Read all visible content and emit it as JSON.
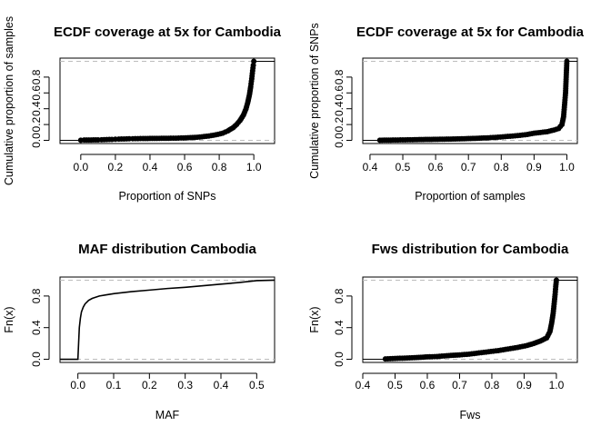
{
  "chart_data": [
    {
      "id": "p1",
      "type": "scatter",
      "title": "ECDF coverage at 5x for Cambodia",
      "xlabel": "Proportion of SNPs",
      "ylabel": "Cumulative proportion of samples",
      "xlim": [
        -0.12,
        1.12
      ],
      "ylim": [
        -0.04,
        1.04
      ],
      "xticks": [
        0.0,
        0.2,
        0.4,
        0.6,
        0.8,
        1.0
      ],
      "xtick_labels": [
        "0.0",
        "0.2",
        "0.4",
        "0.6",
        "0.8",
        "1.0"
      ],
      "yticks": [
        0.0,
        0.2,
        0.4,
        0.6,
        0.8
      ],
      "ytick_labels": [
        "0.0",
        "0.2",
        "0.4",
        "0.6",
        "0.8"
      ],
      "ref_lines": [
        0,
        1
      ],
      "grid": false,
      "points": [
        [
          0.0,
          0.002
        ],
        [
          0.02,
          0.004
        ],
        [
          0.1,
          0.006
        ],
        [
          0.12,
          0.008
        ],
        [
          0.15,
          0.01
        ],
        [
          0.18,
          0.012
        ],
        [
          0.2,
          0.014
        ],
        [
          0.22,
          0.016
        ],
        [
          0.25,
          0.018
        ],
        [
          0.28,
          0.02
        ],
        [
          0.3,
          0.021
        ],
        [
          0.33,
          0.022
        ],
        [
          0.36,
          0.023
        ],
        [
          0.4,
          0.024
        ],
        [
          0.44,
          0.025
        ],
        [
          0.48,
          0.026
        ],
        [
          0.52,
          0.027
        ],
        [
          0.55,
          0.028
        ],
        [
          0.58,
          0.03
        ],
        [
          0.62,
          0.033
        ],
        [
          0.66,
          0.037
        ],
        [
          0.7,
          0.045
        ],
        [
          0.74,
          0.055
        ],
        [
          0.78,
          0.07
        ],
        [
          0.82,
          0.09
        ],
        [
          0.85,
          0.12
        ],
        [
          0.88,
          0.16
        ],
        [
          0.9,
          0.2
        ],
        [
          0.92,
          0.25
        ],
        [
          0.94,
          0.32
        ],
        [
          0.955,
          0.4
        ],
        [
          0.965,
          0.48
        ],
        [
          0.975,
          0.58
        ],
        [
          0.982,
          0.68
        ],
        [
          0.988,
          0.78
        ],
        [
          0.993,
          0.88
        ],
        [
          0.997,
          0.95
        ],
        [
          1.0,
          1.0
        ]
      ]
    },
    {
      "id": "p2",
      "type": "scatter",
      "title": "ECDF coverage at 5x for Cambodia",
      "xlabel": "Proportion of samples",
      "ylabel": "Cumulative proportion of SNPs",
      "xlim": [
        0.378,
        1.032
      ],
      "ylim": [
        -0.04,
        1.04
      ],
      "xticks": [
        0.4,
        0.5,
        0.6,
        0.7,
        0.8,
        0.9,
        1.0
      ],
      "xtick_labels": [
        "0.4",
        "0.5",
        "0.6",
        "0.7",
        "0.8",
        "0.9",
        "1.0"
      ],
      "yticks": [
        0.0,
        0.2,
        0.4,
        0.6,
        0.8
      ],
      "ytick_labels": [
        "0.0",
        "0.2",
        "0.4",
        "0.6",
        "0.8"
      ],
      "ref_lines": [
        0,
        1
      ],
      "grid": false,
      "points": [
        [
          0.43,
          0.002
        ],
        [
          0.47,
          0.004
        ],
        [
          0.5,
          0.006
        ],
        [
          0.53,
          0.008
        ],
        [
          0.55,
          0.01
        ],
        [
          0.6,
          0.013
        ],
        [
          0.64,
          0.016
        ],
        [
          0.68,
          0.02
        ],
        [
          0.72,
          0.025
        ],
        [
          0.76,
          0.032
        ],
        [
          0.79,
          0.04
        ],
        [
          0.82,
          0.05
        ],
        [
          0.85,
          0.06
        ],
        [
          0.88,
          0.075
        ],
        [
          0.9,
          0.09
        ],
        [
          0.92,
          0.1
        ],
        [
          0.94,
          0.11
        ],
        [
          0.96,
          0.13
        ],
        [
          0.975,
          0.15
        ],
        [
          0.985,
          0.2
        ],
        [
          0.99,
          0.3
        ],
        [
          0.993,
          0.45
        ],
        [
          0.996,
          0.6
        ],
        [
          0.998,
          0.8
        ],
        [
          1.0,
          1.0
        ]
      ]
    },
    {
      "id": "p3",
      "type": "line",
      "title": "MAF distribution Cambodia",
      "xlabel": "MAF",
      "ylabel": "Fn(x)",
      "xlim": [
        -0.05,
        0.55
      ],
      "ylim": [
        -0.04,
        1.04
      ],
      "xticks": [
        0.0,
        0.1,
        0.2,
        0.3,
        0.4,
        0.5
      ],
      "xtick_labels": [
        "0.0",
        "0.1",
        "0.2",
        "0.3",
        "0.4",
        "0.5"
      ],
      "yticks": [
        0.0,
        0.4,
        0.8
      ],
      "ytick_labels": [
        "0.0",
        "0.4",
        "0.8"
      ],
      "ref_lines": [
        0,
        1
      ],
      "grid": false,
      "curve": [
        [
          -0.05,
          0.0
        ],
        [
          0.0,
          0.0
        ],
        [
          0.002,
          0.2
        ],
        [
          0.004,
          0.4
        ],
        [
          0.007,
          0.52
        ],
        [
          0.01,
          0.6
        ],
        [
          0.015,
          0.66
        ],
        [
          0.02,
          0.7
        ],
        [
          0.03,
          0.745
        ],
        [
          0.04,
          0.77
        ],
        [
          0.06,
          0.8
        ],
        [
          0.08,
          0.815
        ],
        [
          0.1,
          0.83
        ],
        [
          0.15,
          0.855
        ],
        [
          0.2,
          0.875
        ],
        [
          0.25,
          0.895
        ],
        [
          0.3,
          0.91
        ],
        [
          0.35,
          0.93
        ],
        [
          0.4,
          0.95
        ],
        [
          0.45,
          0.97
        ],
        [
          0.5,
          0.995
        ],
        [
          0.55,
          1.0
        ]
      ]
    },
    {
      "id": "p4",
      "type": "scatter",
      "title": "Fws distribution for Cambodia",
      "xlabel": "Fws",
      "ylabel": "Fn(x)",
      "xlim": [
        0.4,
        1.065
      ],
      "ylim": [
        -0.04,
        1.04
      ],
      "xticks": [
        0.4,
        0.5,
        0.6,
        0.7,
        0.8,
        0.9,
        1.0
      ],
      "xtick_labels": [
        "0.4",
        "0.5",
        "0.6",
        "0.7",
        "0.8",
        "0.9",
        "1.0"
      ],
      "yticks": [
        0.0,
        0.4,
        0.8
      ],
      "ytick_labels": [
        "0.0",
        "0.4",
        "0.8"
      ],
      "ref_lines": [
        0,
        1
      ],
      "grid": false,
      "points": [
        [
          0.47,
          0.005
        ],
        [
          0.5,
          0.01
        ],
        [
          0.53,
          0.015
        ],
        [
          0.56,
          0.02
        ],
        [
          0.6,
          0.03
        ],
        [
          0.63,
          0.035
        ],
        [
          0.66,
          0.045
        ],
        [
          0.7,
          0.055
        ],
        [
          0.73,
          0.065
        ],
        [
          0.76,
          0.08
        ],
        [
          0.79,
          0.095
        ],
        [
          0.82,
          0.11
        ],
        [
          0.85,
          0.13
        ],
        [
          0.88,
          0.15
        ],
        [
          0.91,
          0.175
        ],
        [
          0.93,
          0.2
        ],
        [
          0.95,
          0.23
        ],
        [
          0.97,
          0.27
        ],
        [
          0.98,
          0.35
        ],
        [
          0.985,
          0.45
        ],
        [
          0.99,
          0.58
        ],
        [
          0.993,
          0.7
        ],
        [
          0.996,
          0.82
        ],
        [
          0.998,
          0.92
        ],
        [
          1.0,
          1.0
        ]
      ]
    }
  ]
}
